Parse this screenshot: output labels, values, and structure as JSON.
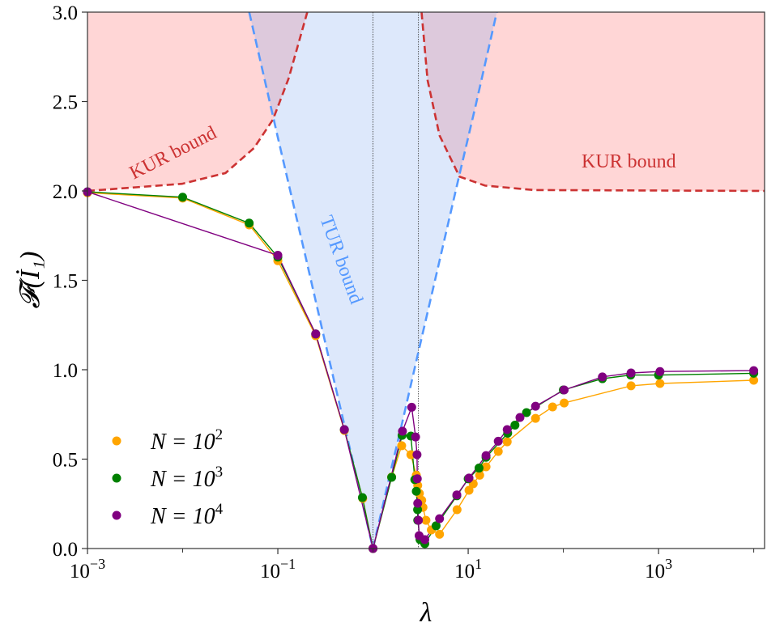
{
  "chart_data": {
    "type": "scatter",
    "title": "",
    "xlabel": "λ",
    "ylabel": "𝓕(İ₁)",
    "xscale": "log",
    "xlim": [
      0.001,
      13000
    ],
    "ylim": [
      0,
      3.0
    ],
    "grid": false,
    "legend_placement": "lower-left",
    "x_tick_labels": [
      {
        "value": 0.001,
        "base": "10",
        "exp": "−3"
      },
      {
        "value": 0.1,
        "base": "10",
        "exp": "−1"
      },
      {
        "value": 10,
        "base": "10",
        "exp": "1"
      },
      {
        "value": 1000,
        "base": "10",
        "exp": "3"
      }
    ],
    "x_minor_ticks": [
      0.01,
      1,
      100,
      10000
    ],
    "y_ticks": [
      0.0,
      0.5,
      1.0,
      1.5,
      2.0,
      2.5,
      3.0
    ],
    "y_tick_labels": [
      "0.0",
      "0.5",
      "1.0",
      "1.5",
      "2.0",
      "2.5",
      "3.0"
    ],
    "vertical_lines": [
      1,
      3
    ],
    "series": [
      {
        "name": "N = 10²",
        "legend_base": "N = 10",
        "legend_exp": "2",
        "color": "#FFA500",
        "points": [
          [
            0.001,
            1.99
          ],
          [
            0.01,
            1.96
          ],
          [
            0.05,
            1.81
          ],
          [
            0.1,
            1.61
          ],
          [
            0.25,
            1.19
          ],
          [
            0.5,
            0.66
          ],
          [
            0.78,
            0.28
          ],
          [
            1,
            0
          ],
          [
            1.57,
            0.4
          ],
          [
            2.0,
            0.575
          ],
          [
            2.5,
            0.525
          ],
          [
            2.85,
            0.41
          ],
          [
            2.95,
            0.353
          ],
          [
            3.07,
            0.308
          ],
          [
            3.25,
            0.27
          ],
          [
            3.35,
            0.23
          ],
          [
            3.6,
            0.158
          ],
          [
            4.1,
            0.104
          ],
          [
            5.0,
            0.08
          ],
          [
            7.64,
            0.217
          ],
          [
            10.2,
            0.326
          ],
          [
            11.3,
            0.362
          ],
          [
            13.2,
            0.41
          ],
          [
            15.4,
            0.457
          ],
          [
            20.7,
            0.543
          ],
          [
            25.7,
            0.597
          ],
          [
            51,
            0.728
          ],
          [
            77,
            0.792
          ],
          [
            102,
            0.814
          ],
          [
            514,
            0.91
          ],
          [
            1035,
            0.923
          ],
          [
            10000,
            0.941
          ]
        ]
      },
      {
        "name": "N = 10³",
        "legend_base": "N = 10",
        "legend_exp": "3",
        "color": "#008000",
        "points": [
          [
            0.001,
            1.995
          ],
          [
            0.01,
            1.965
          ],
          [
            0.05,
            1.82
          ],
          [
            0.1,
            1.63
          ],
          [
            0.25,
            1.2
          ],
          [
            0.5,
            0.665
          ],
          [
            0.774,
            0.285
          ],
          [
            1,
            0
          ],
          [
            1.57,
            0.398
          ],
          [
            2.02,
            0.633
          ],
          [
            2.5,
            0.629
          ],
          [
            2.75,
            0.385
          ],
          [
            2.85,
            0.32
          ],
          [
            2.94,
            0.217
          ],
          [
            2.95,
            0.158
          ],
          [
            3.12,
            0.05
          ],
          [
            3.5,
            0.027
          ],
          [
            4.6,
            0.127
          ],
          [
            7.6,
            0.295
          ],
          [
            10,
            0.39
          ],
          [
            13,
            0.45
          ],
          [
            15.4,
            0.51
          ],
          [
            26,
            0.645
          ],
          [
            31,
            0.69
          ],
          [
            41,
            0.76
          ],
          [
            100,
            0.887
          ],
          [
            257,
            0.95
          ],
          [
            510,
            0.97
          ],
          [
            1000,
            0.97
          ],
          [
            10000,
            0.98
          ]
        ]
      },
      {
        "name": "N = 10⁴",
        "legend_base": "N = 10",
        "legend_exp": "4",
        "color": "#800080",
        "points": [
          [
            0.001,
            1.995
          ],
          [
            0.1,
            1.64
          ],
          [
            0.25,
            1.2
          ],
          [
            0.5,
            0.665
          ],
          [
            1,
            0
          ],
          [
            2.04,
            0.656
          ],
          [
            2.55,
            0.79
          ],
          [
            2.8,
            0.624
          ],
          [
            2.9,
            0.525
          ],
          [
            2.92,
            0.39
          ],
          [
            2.95,
            0.253
          ],
          [
            3.0,
            0.158
          ],
          [
            3.05,
            0.072
          ],
          [
            3.5,
            0.05
          ],
          [
            5.0,
            0.167
          ],
          [
            7.6,
            0.3
          ],
          [
            10.2,
            0.394
          ],
          [
            15.4,
            0.52
          ],
          [
            20.7,
            0.6
          ],
          [
            25.7,
            0.665
          ],
          [
            35,
            0.733
          ],
          [
            51,
            0.796
          ],
          [
            102,
            0.887
          ],
          [
            257,
            0.96
          ],
          [
            514,
            0.982
          ],
          [
            1035,
            0.99
          ],
          [
            10000,
            0.995
          ]
        ]
      }
    ],
    "bounds": {
      "kur": {
        "label": "KUR bound",
        "color": "#CC3333",
        "fill": "#FFD6D6",
        "left": [
          [
            0.001,
            2.0
          ],
          [
            0.00986,
            2.04
          ],
          [
            0.0282,
            2.1
          ],
          [
            0.0562,
            2.24
          ],
          [
            0.0891,
            2.4
          ],
          [
            0.13,
            2.63
          ],
          [
            0.204,
            3.0
          ]
        ],
        "right": [
          [
            3.24,
            3.0
          ],
          [
            3.74,
            2.62
          ],
          [
            5.0,
            2.31
          ],
          [
            8.1,
            2.08
          ],
          [
            15,
            2.03
          ],
          [
            49,
            2.005
          ],
          [
            13000,
            2.0
          ]
        ]
      },
      "tur": {
        "label": "TUR bound",
        "color": "#5599FF",
        "fill": "#DDE9FB",
        "points": [
          [
            0.05,
            3.0
          ],
          [
            0.1,
            2.3
          ],
          [
            0.2,
            1.61
          ],
          [
            0.3,
            1.2
          ],
          [
            0.5,
            0.69
          ],
          [
            0.7,
            0.36
          ],
          [
            1,
            0
          ],
          [
            1.5,
            0.41
          ],
          [
            2,
            0.69
          ],
          [
            3,
            1.1
          ],
          [
            5,
            1.61
          ],
          [
            8,
            2.08
          ],
          [
            12,
            2.48
          ],
          [
            20,
            3.0
          ]
        ]
      }
    }
  }
}
